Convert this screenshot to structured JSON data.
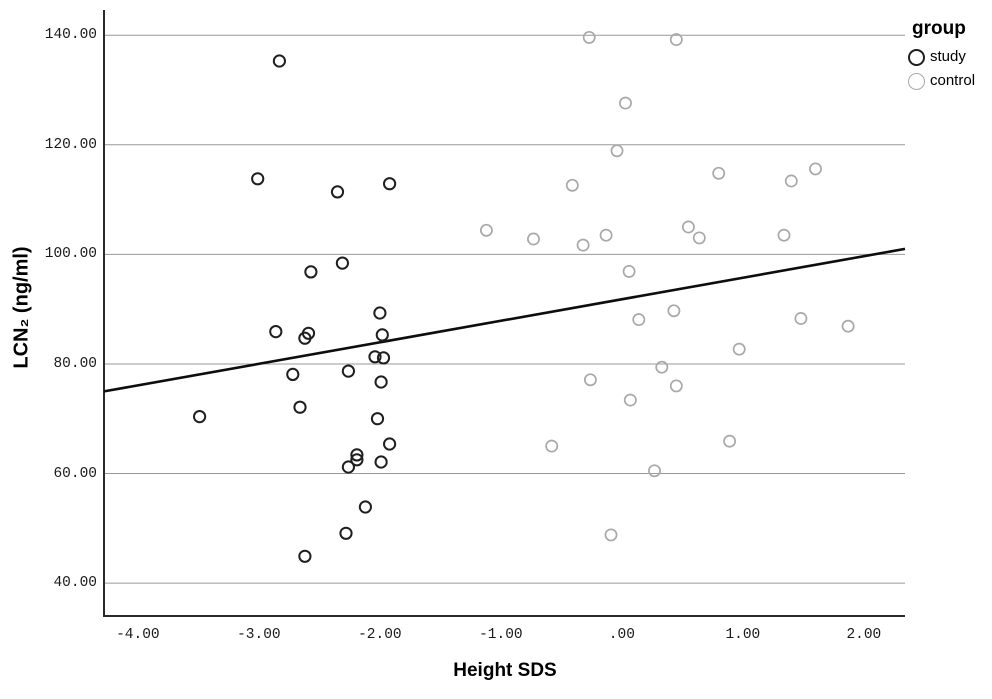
{
  "colors": {
    "background": "#ffffff",
    "gridline": "#999999",
    "axis": "#2a2a2a",
    "text": "#000000",
    "fit_line": "#0d0d0d",
    "study_marker": "#1f1f1f",
    "control_marker": "#a9a9a9"
  },
  "legend": {
    "title": "group",
    "items": [
      {
        "label": "study",
        "marker": "open-circle",
        "color": "#1f1f1f"
      },
      {
        "label": "control",
        "marker": "open-circle",
        "color": "#a9a9a9"
      }
    ]
  },
  "chart_data": {
    "type": "scatter",
    "title": "",
    "xlabel": "Height SDS",
    "ylabel": "LCN₂ (ng/ml)",
    "x_tick_labels": [
      "-4.00",
      "-3.00",
      "-2.00",
      "-1.00",
      ".00",
      "1.00",
      "2.00"
    ],
    "x_tick_values": [
      -4,
      -3,
      -2,
      -1,
      0,
      1,
      2
    ],
    "y_tick_labels": [
      "40.00",
      "60.00",
      "80.00",
      "100.00",
      "120.00",
      "140.00"
    ],
    "y_tick_values": [
      40,
      60,
      80,
      100,
      120,
      140
    ],
    "xlim": [
      -4.28,
      2.34
    ],
    "ylim": [
      34.0,
      144.6
    ],
    "grid": "horizontal-only",
    "legend_position": "outside-top-right",
    "series": [
      {
        "name": "study",
        "marker": "open-circle",
        "marker_color": "#1f1f1f",
        "points": [
          [
            -3.49,
            70.4
          ],
          [
            -3.01,
            113.8
          ],
          [
            -2.83,
            135.3
          ],
          [
            -2.86,
            85.9
          ],
          [
            -2.72,
            78.1
          ],
          [
            -2.66,
            72.1
          ],
          [
            -2.62,
            44.9
          ],
          [
            -2.62,
            84.7
          ],
          [
            -2.59,
            85.6
          ],
          [
            -2.57,
            96.8
          ],
          [
            -2.35,
            111.4
          ],
          [
            -2.31,
            98.4
          ],
          [
            -2.28,
            49.1
          ],
          [
            -2.26,
            78.7
          ],
          [
            -2.19,
            63.4
          ],
          [
            -2.19,
            62.5
          ],
          [
            -2.26,
            61.2
          ],
          [
            -2.12,
            53.9
          ],
          [
            -2.04,
            81.3
          ],
          [
            -1.97,
            81.1
          ],
          [
            -2.02,
            70.0
          ],
          [
            -1.99,
            76.7
          ],
          [
            -1.99,
            62.1
          ],
          [
            -2.0,
            89.3
          ],
          [
            -1.98,
            85.3
          ],
          [
            -1.92,
            112.9
          ],
          [
            -1.92,
            65.4
          ]
        ]
      },
      {
        "name": "control",
        "marker": "open-circle",
        "marker_color": "#a9a9a9",
        "points": [
          [
            -1.12,
            104.4
          ],
          [
            -0.73,
            102.8
          ],
          [
            -0.58,
            65.0
          ],
          [
            -0.41,
            112.6
          ],
          [
            -0.32,
            101.7
          ],
          [
            -0.27,
            139.6
          ],
          [
            -0.26,
            77.1
          ],
          [
            -0.13,
            103.5
          ],
          [
            -0.09,
            48.8
          ],
          [
            0.03,
            127.6
          ],
          [
            -0.04,
            118.9
          ],
          [
            0.06,
            96.9
          ],
          [
            0.07,
            73.4
          ],
          [
            0.14,
            88.1
          ],
          [
            0.27,
            60.5
          ],
          [
            0.33,
            79.4
          ],
          [
            0.43,
            89.7
          ],
          [
            0.45,
            139.2
          ],
          [
            0.45,
            76.0
          ],
          [
            0.55,
            105.0
          ],
          [
            0.64,
            103.0
          ],
          [
            0.8,
            114.8
          ],
          [
            0.89,
            65.9
          ],
          [
            0.97,
            82.7
          ],
          [
            1.34,
            103.5
          ],
          [
            1.4,
            113.4
          ],
          [
            1.48,
            88.3
          ],
          [
            1.6,
            115.6
          ],
          [
            1.87,
            86.9
          ]
        ]
      }
    ],
    "fit_line": {
      "x1": -4.28,
      "y1": 75.0,
      "x2": 2.34,
      "y2": 101.0
    }
  }
}
